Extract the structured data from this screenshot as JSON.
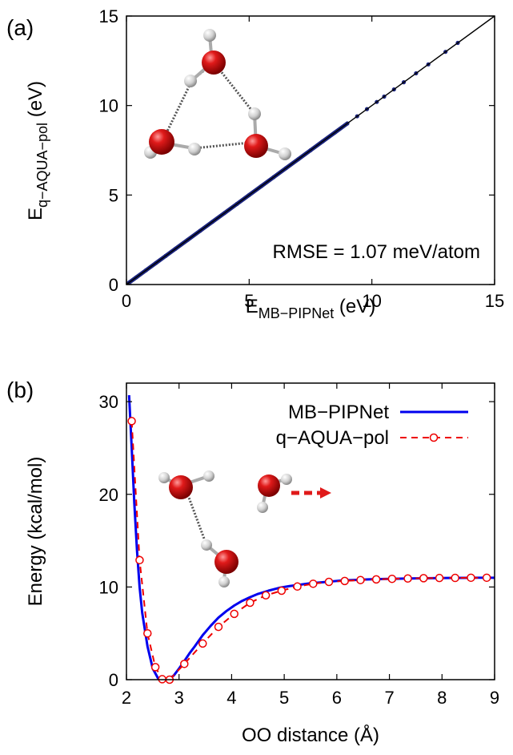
{
  "chart_data": [
    {
      "panel_label": "(a)",
      "type": "scatter",
      "xlabel_main": "E",
      "xlabel_sub": "MB−PIPNet",
      "xlabel_unit": " (eV)",
      "ylabel_main": "E",
      "ylabel_sub": "q−AQUA−pol",
      "ylabel_unit": " (eV)",
      "xlim": [
        0,
        15
      ],
      "ylim": [
        0,
        15
      ],
      "xticks": [
        "0",
        "5",
        "10",
        "15"
      ],
      "yticks": [
        "0",
        "5",
        "10",
        "15"
      ],
      "annotation": "RMSE = 1.07 meV/atom",
      "grid": false,
      "diagonal": [
        [
          0,
          0
        ],
        [
          15,
          15
        ]
      ],
      "series": [
        {
          "points": [
            [
              0.1,
              0.1
            ],
            [
              0.4,
              0.4
            ],
            [
              0.8,
              0.8
            ],
            [
              1.2,
              1.2
            ],
            [
              1.6,
              1.6
            ],
            [
              2.0,
              2.0
            ],
            [
              2.5,
              2.5
            ],
            [
              3.0,
              3.0
            ],
            [
              3.5,
              3.5
            ],
            [
              4.0,
              4.0
            ],
            [
              4.5,
              4.5
            ],
            [
              5.0,
              5.0
            ],
            [
              5.5,
              5.5
            ],
            [
              6.0,
              6.0
            ],
            [
              6.5,
              6.5
            ],
            [
              7.0,
              7.0
            ],
            [
              7.5,
              7.5
            ],
            [
              8.0,
              8.0
            ],
            [
              8.5,
              8.5
            ],
            [
              9.0,
              9.0
            ],
            [
              9.4,
              9.4
            ],
            [
              9.8,
              9.8
            ],
            [
              10.2,
              10.2
            ],
            [
              10.5,
              10.5
            ],
            [
              10.9,
              10.9
            ],
            [
              11.3,
              11.3
            ],
            [
              11.8,
              11.8
            ],
            [
              12.3,
              12.3
            ],
            [
              13.0,
              13.0
            ],
            [
              13.5,
              13.5
            ]
          ]
        }
      ]
    },
    {
      "panel_label": "(b)",
      "type": "line",
      "xlabel": "OO distance (Å)",
      "ylabel": "Energy (kcal/mol)",
      "xlim": [
        2,
        9
      ],
      "ylim": [
        0,
        32
      ],
      "xticks": [
        "2",
        "3",
        "4",
        "5",
        "6",
        "7",
        "8",
        "9"
      ],
      "yticks": [
        "0",
        "10",
        "20",
        "30"
      ],
      "legend_position": "top-right",
      "grid": false,
      "series": [
        {
          "name": "MB−PIPNet",
          "style": "solid line",
          "x": [
            2.05,
            2.1,
            2.15,
            2.2,
            2.25,
            2.3,
            2.4,
            2.5,
            2.6,
            2.7,
            2.8,
            2.9,
            3.0,
            3.1,
            3.2,
            3.3,
            3.45,
            3.6,
            3.75,
            3.9,
            4.05,
            4.2,
            4.35,
            4.5,
            4.7,
            4.9,
            5.1,
            5.3,
            5.5,
            5.7,
            5.9,
            6.1,
            6.3,
            6.6,
            6.9,
            7.2,
            7.5,
            7.8,
            8.1,
            8.4,
            8.7,
            9.0
          ],
          "values": [
            30.7,
            25.0,
            19.0,
            14.0,
            10.0,
            7.2,
            3.6,
            1.2,
            0.15,
            0.0,
            0.05,
            0.45,
            1.2,
            2.0,
            2.85,
            3.6,
            4.8,
            5.8,
            6.7,
            7.4,
            8.0,
            8.5,
            8.9,
            9.25,
            9.6,
            9.9,
            10.1,
            10.25,
            10.4,
            10.5,
            10.6,
            10.7,
            10.75,
            10.82,
            10.87,
            10.9,
            10.93,
            10.95,
            10.97,
            10.98,
            11.0,
            11.0
          ]
        },
        {
          "name": "q−AQUA−pol",
          "style": "dashed line with open circles",
          "x": [
            2.1,
            2.25,
            2.4,
            2.55,
            2.68,
            2.82,
            3.1,
            3.45,
            3.75,
            4.05,
            4.35,
            4.65,
            4.95,
            5.25,
            5.55,
            5.85,
            6.15,
            6.45,
            6.75,
            7.05,
            7.35,
            7.65,
            7.95,
            8.25,
            8.55,
            8.85
          ],
          "values": [
            27.9,
            12.9,
            5.0,
            1.35,
            0.05,
            0.0,
            1.7,
            3.9,
            5.7,
            7.1,
            8.3,
            9.1,
            9.6,
            10.05,
            10.35,
            10.55,
            10.65,
            10.75,
            10.82,
            10.88,
            10.92,
            10.95,
            10.97,
            10.98,
            11.0,
            11.0
          ]
        }
      ]
    }
  ]
}
